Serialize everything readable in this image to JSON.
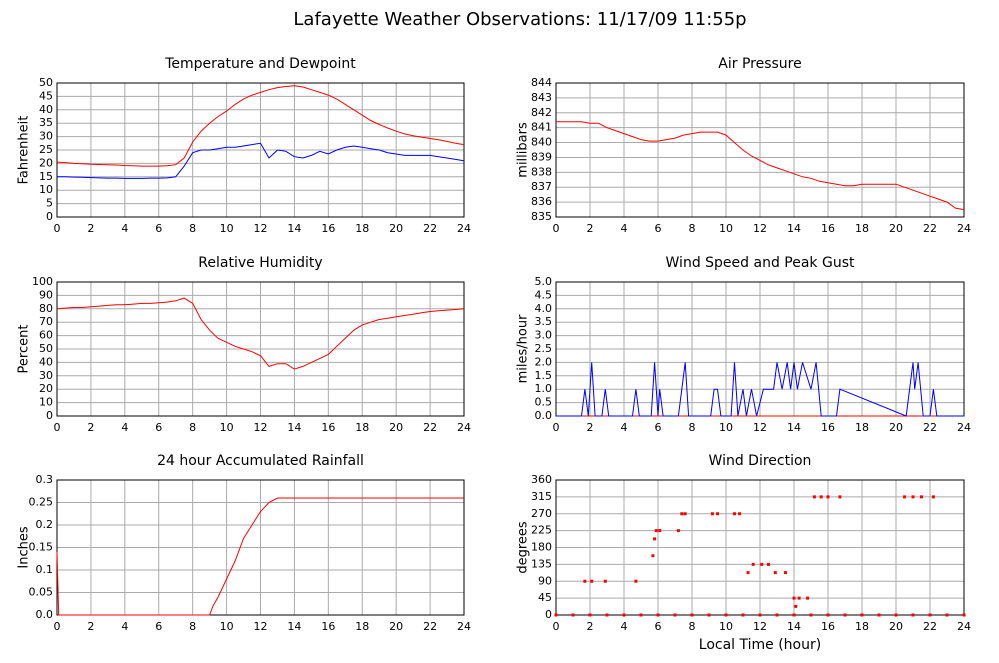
{
  "title": "Lafayette Weather Observations: 11/17/09 11:55p",
  "chart_data": [
    {
      "type": "line",
      "title": "Temperature and Dewpoint",
      "y_label": "Fahrenheit",
      "x": [
        0,
        0.5,
        1,
        1.5,
        2,
        2.5,
        3,
        3.5,
        4,
        4.5,
        5,
        5.5,
        6,
        6.5,
        7,
        7.5,
        8,
        8.5,
        9,
        9.5,
        10,
        10.5,
        11,
        11.5,
        12,
        12.5,
        13,
        13.5,
        14,
        14.5,
        15,
        15.5,
        16,
        16.5,
        17,
        17.5,
        18,
        18.5,
        19,
        19.5,
        20,
        20.5,
        21,
        21.5,
        22,
        22.5,
        23,
        23.5,
        24
      ],
      "series": [
        {
          "color": "#ff0000",
          "values": [
            20.5,
            20.3,
            20,
            19.9,
            19.7,
            19.6,
            19.5,
            19.4,
            19.2,
            19.1,
            19,
            19,
            19,
            19.1,
            19.5,
            22,
            28,
            32,
            35,
            37.5,
            39.5,
            42,
            44,
            45.5,
            46.5,
            47.5,
            48.3,
            48.7,
            49,
            48.5,
            47.5,
            46.5,
            45.5,
            44,
            42,
            40,
            38,
            36,
            34.5,
            33.2,
            32,
            31,
            30.3,
            29.8,
            29.3,
            28.8,
            28.2,
            27.5,
            27
          ]
        },
        {
          "color": "#0000ff",
          "values": [
            15,
            15,
            14.9,
            14.8,
            14.7,
            14.6,
            14.5,
            14.5,
            14.4,
            14.4,
            14.4,
            14.5,
            14.5,
            14.6,
            15,
            19,
            24,
            25,
            25,
            25.5,
            26,
            26,
            26.5,
            27,
            27.5,
            22,
            25,
            24.5,
            22.5,
            22,
            23,
            24.5,
            23.5,
            25,
            26,
            26.5,
            26,
            25.5,
            25,
            24,
            23.5,
            23,
            23,
            23,
            23,
            22.5,
            22,
            21.5,
            21
          ]
        }
      ],
      "xlim": [
        0,
        24
      ],
      "xticks": [
        0,
        2,
        4,
        6,
        8,
        10,
        12,
        14,
        16,
        18,
        20,
        22,
        24
      ],
      "ylim": [
        0,
        50
      ],
      "yticks": [
        0,
        5,
        10,
        15,
        20,
        25,
        30,
        35,
        40,
        45,
        50
      ],
      "grid": true
    },
    {
      "type": "line",
      "title": "Air Pressure",
      "y_label": "millibars",
      "x": [
        0,
        0.5,
        1,
        1.5,
        2,
        2.5,
        3,
        3.5,
        4,
        4.5,
        5,
        5.5,
        6,
        6.5,
        7,
        7.5,
        8,
        8.5,
        9,
        9.5,
        10,
        10.5,
        11,
        11.5,
        12,
        12.5,
        13,
        13.5,
        14,
        14.5,
        15,
        15.5,
        16,
        16.5,
        17,
        17.5,
        18,
        18.5,
        19,
        19.5,
        20,
        20.5,
        21,
        21.5,
        22,
        22.5,
        23,
        23.5,
        24
      ],
      "series": [
        {
          "color": "#ff0000",
          "values": [
            841.4,
            841.4,
            841.4,
            841.4,
            841.3,
            841.3,
            841,
            840.8,
            840.6,
            840.4,
            840.2,
            840.1,
            840.1,
            840.2,
            840.3,
            840.5,
            840.6,
            840.7,
            840.7,
            840.7,
            840.5,
            840,
            839.5,
            839.1,
            838.8,
            838.5,
            838.3,
            838.1,
            837.9,
            837.7,
            837.6,
            837.4,
            837.3,
            837.2,
            837.1,
            837.1,
            837.2,
            837.2,
            837.2,
            837.2,
            837.2,
            837,
            836.8,
            836.6,
            836.4,
            836.2,
            836,
            835.6,
            835.5
          ]
        }
      ],
      "xlim": [
        0,
        24
      ],
      "xticks": [
        0,
        2,
        4,
        6,
        8,
        10,
        12,
        14,
        16,
        18,
        20,
        22,
        24
      ],
      "ylim": [
        835,
        844
      ],
      "yticks": [
        835,
        836,
        837,
        838,
        839,
        840,
        841,
        842,
        843,
        844
      ],
      "grid": true
    },
    {
      "type": "line",
      "title": "Relative Humidity",
      "y_label": "Percent",
      "x": [
        0,
        0.5,
        1,
        1.5,
        2,
        2.5,
        3,
        3.5,
        4,
        4.5,
        5,
        5.5,
        6,
        6.5,
        7,
        7.5,
        8,
        8.5,
        9,
        9.5,
        10,
        10.5,
        11,
        11.5,
        12,
        12.5,
        13,
        13.5,
        14,
        14.5,
        15,
        15.5,
        16,
        16.5,
        17,
        17.5,
        18,
        18.5,
        19,
        19.5,
        20,
        20.5,
        21,
        21.5,
        22,
        22.5,
        23,
        23.5,
        24
      ],
      "series": [
        {
          "color": "#ff0000",
          "values": [
            80,
            80.5,
            81,
            81,
            81.5,
            82,
            82.5,
            83,
            83,
            83.5,
            84,
            84,
            84.5,
            85,
            86,
            88,
            84,
            72,
            64,
            58,
            55,
            52,
            50,
            48,
            45,
            37,
            39,
            39,
            35,
            37,
            40,
            43,
            46,
            52,
            58,
            64,
            68,
            70,
            72,
            73,
            74,
            75,
            76,
            77,
            78,
            78.5,
            79,
            79.5,
            80
          ]
        }
      ],
      "xlim": [
        0,
        24
      ],
      "xticks": [
        0,
        2,
        4,
        6,
        8,
        10,
        12,
        14,
        16,
        18,
        20,
        22,
        24
      ],
      "ylim": [
        0,
        100
      ],
      "yticks": [
        0,
        10,
        20,
        30,
        40,
        50,
        60,
        70,
        80,
        90,
        100
      ],
      "grid": true
    },
    {
      "type": "line",
      "title": "Wind Speed and Peak Gust",
      "y_label": "miles/hour",
      "x": [
        0,
        1.5,
        1.7,
        1.9,
        2.1,
        2.3,
        2.7,
        2.9,
        3.1,
        4.5,
        4.7,
        4.9,
        5.6,
        5.8,
        6,
        6.1,
        6.3,
        7.2,
        7.4,
        7.6,
        7.8,
        9.1,
        9.3,
        9.5,
        9.7,
        10.3,
        10.5,
        10.7,
        11,
        11.2,
        11.5,
        11.8,
        12.2,
        12.8,
        13,
        13.3,
        13.6,
        13.8,
        14,
        14.2,
        14.5,
        15,
        15.3,
        15.6,
        16.5,
        16.7,
        20.6,
        20.8,
        21,
        21.1,
        21.3,
        21.6,
        22,
        22.2,
        22.4,
        24
      ],
      "series": [
        {
          "color": "#ff0000",
          "values": [
            0,
            0,
            0,
            0,
            0,
            0,
            0,
            0,
            0,
            0,
            0,
            0,
            0,
            0,
            0,
            0,
            0,
            0,
            0,
            0,
            0,
            0,
            0,
            0,
            0,
            0,
            0,
            0,
            0,
            0,
            0,
            0,
            0,
            0,
            0,
            0,
            0,
            0,
            0,
            0,
            0,
            0,
            0,
            0,
            0,
            0,
            0,
            0,
            0,
            0,
            0,
            0,
            0,
            0,
            0,
            0
          ]
        },
        {
          "color": "#0000ff",
          "values": [
            0,
            0,
            1,
            0,
            2,
            0,
            0,
            1,
            0,
            0,
            1,
            0,
            0,
            2,
            0,
            1,
            0,
            0,
            1,
            2,
            0,
            0,
            1,
            1,
            0,
            0,
            2,
            0,
            1,
            0,
            1,
            0,
            1,
            1,
            2,
            1,
            2,
            1,
            2,
            1,
            2,
            1,
            2,
            0,
            0,
            1,
            0,
            1,
            2,
            1,
            2,
            0,
            0,
            1,
            0,
            0
          ]
        }
      ],
      "xlim": [
        0,
        24
      ],
      "xticks": [
        0,
        2,
        4,
        6,
        8,
        10,
        12,
        14,
        16,
        18,
        20,
        22,
        24
      ],
      "ylim": [
        0,
        5
      ],
      "yticks": [
        {
          "value": 0,
          "label": "0.0"
        },
        {
          "value": 0.5,
          "label": "0.5"
        },
        {
          "value": 1,
          "label": "1.0"
        },
        {
          "value": 1.5,
          "label": "1.5"
        },
        {
          "value": 2,
          "label": "2.0"
        },
        {
          "value": 2.5,
          "label": "2.5"
        },
        {
          "value": 3,
          "label": "3.0"
        },
        {
          "value": 3.5,
          "label": "3.5"
        },
        {
          "value": 4,
          "label": "4.0"
        },
        {
          "value": 4.5,
          "label": "4.5"
        },
        {
          "value": 5,
          "label": "5.0"
        }
      ],
      "grid": true
    },
    {
      "type": "line",
      "title": "24 hour Accumulated Rainfall",
      "y_label": "Inches",
      "x": [
        0,
        0.1,
        9,
        9.2,
        9.5,
        10,
        10.5,
        11,
        11.5,
        12,
        12.5,
        13,
        13.2,
        24
      ],
      "series": [
        {
          "color": "#ff0000",
          "values": [
            0.14,
            0,
            0,
            0.02,
            0.04,
            0.08,
            0.12,
            0.17,
            0.2,
            0.23,
            0.25,
            0.26,
            0.26,
            0.26
          ]
        }
      ],
      "xlim": [
        0,
        24
      ],
      "xticks": [
        0,
        2,
        4,
        6,
        8,
        10,
        12,
        14,
        16,
        18,
        20,
        22,
        24
      ],
      "ylim": [
        0,
        0.3
      ],
      "yticks": [
        {
          "value": 0,
          "label": "0.0"
        },
        0.05,
        0.1,
        0.15,
        0.2,
        0.25,
        0.3
      ],
      "grid": true
    },
    {
      "type": "scatter",
      "title": "Wind Direction",
      "y_label": "degrees",
      "x_label": "Local Time (hour)",
      "x": [
        0,
        1,
        2,
        3,
        4,
        5,
        6,
        7,
        8,
        9,
        10,
        11,
        12,
        13,
        14,
        15,
        16,
        17,
        18,
        19,
        20,
        21,
        22,
        23,
        24,
        1.7,
        2.1,
        2.9,
        4.7,
        5.7,
        5.8,
        5.9,
        6.1,
        7.2,
        7.4,
        7.6,
        9.2,
        9.5,
        10.5,
        10.8,
        11.3,
        11.6,
        12.1,
        12.5,
        12.9,
        13.5,
        14,
        14.1,
        14.3,
        14.8,
        15.2,
        15.6,
        16,
        16.7,
        20.5,
        21,
        21.5,
        22.2
      ],
      "series": [
        {
          "color": "#ff0000",
          "values": [
            0,
            0,
            0,
            0,
            0,
            0,
            0,
            0,
            0,
            0,
            0,
            0,
            0,
            0,
            0,
            0,
            0,
            0,
            0,
            0,
            0,
            0,
            0,
            0,
            0,
            90,
            90,
            90,
            90,
            158,
            203,
            225,
            225,
            225,
            270,
            270,
            270,
            270,
            270,
            270,
            113,
            135,
            135,
            135,
            113,
            113,
            45,
            23,
            45,
            45,
            315,
            315,
            315,
            315,
            315,
            315,
            315,
            315
          ]
        }
      ],
      "xlim": [
        0,
        24
      ],
      "xticks": [
        0,
        2,
        4,
        6,
        8,
        10,
        12,
        14,
        16,
        18,
        20,
        22,
        24
      ],
      "ylim": [
        0,
        360
      ],
      "yticks": [
        0,
        45,
        90,
        135,
        180,
        225,
        270,
        315,
        360
      ],
      "grid": true
    }
  ]
}
